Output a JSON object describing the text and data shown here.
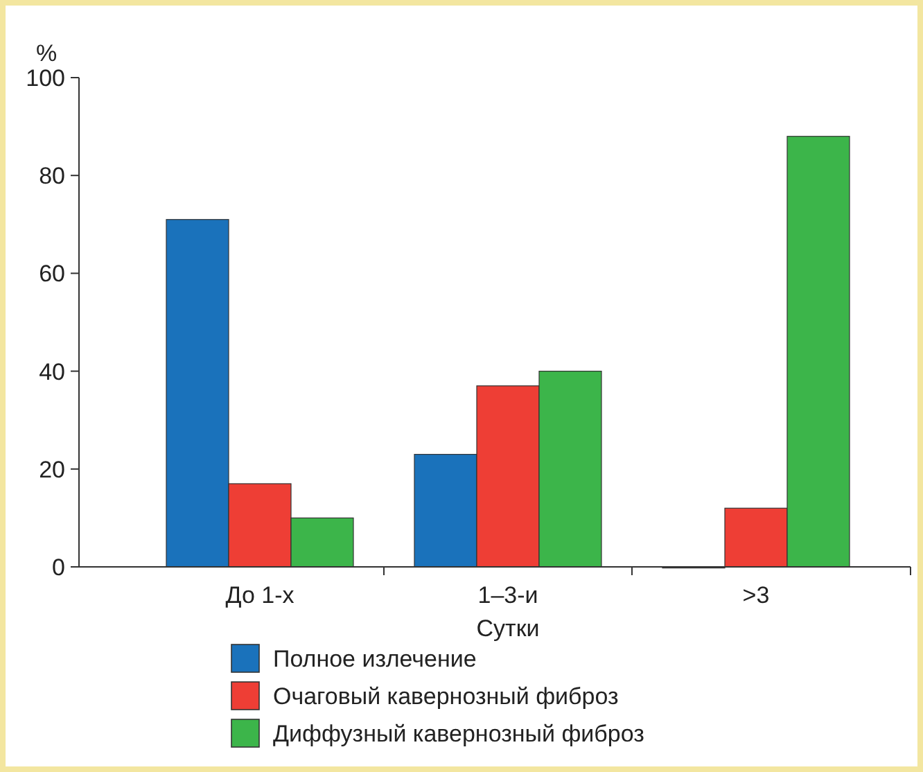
{
  "chart_data": {
    "type": "bar",
    "xlabel": "Сутки",
    "ylabel": "%",
    "categories": [
      "До 1-х",
      "1–3-и",
      ">3"
    ],
    "series": [
      {
        "name": "Полное излечение",
        "color": "#1a72bb",
        "values": [
          71,
          23,
          0
        ]
      },
      {
        "name": "Очаговый кавернозный фиброз",
        "color": "#ee3e35",
        "values": [
          17,
          37,
          12
        ]
      },
      {
        "name": "Диффузный кавернозный фиброз",
        "color": "#3cb54a",
        "values": [
          10,
          40,
          88
        ]
      }
    ],
    "ylim": [
      0,
      100
    ],
    "yticks": [
      0,
      20,
      40,
      60,
      80,
      100
    ],
    "grid": false,
    "legend": "bottom"
  }
}
